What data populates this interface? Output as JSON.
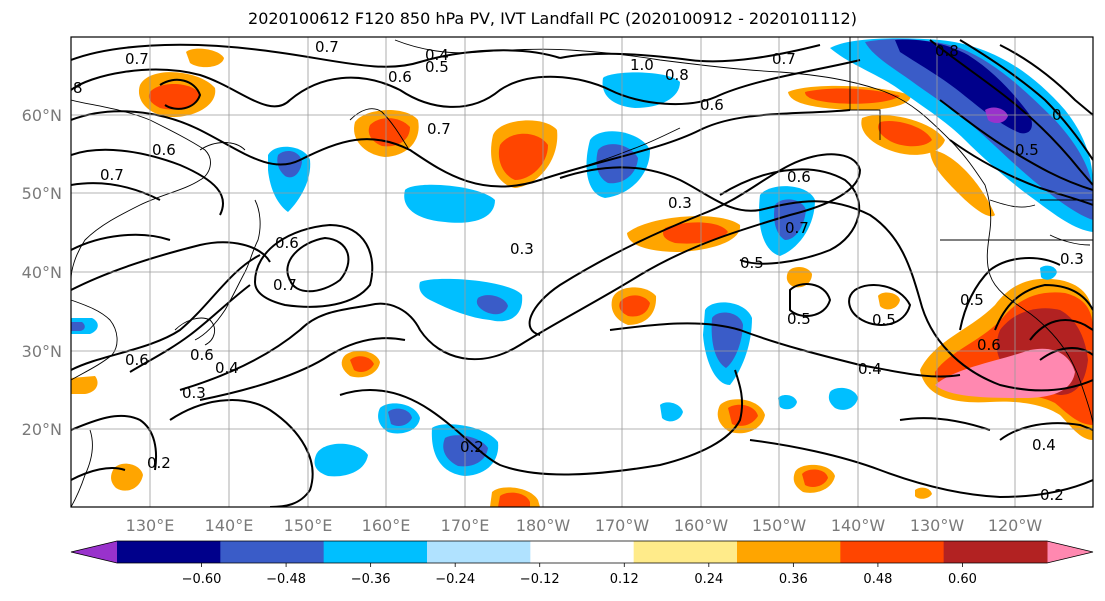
{
  "title": "2020100612 F120 850 hPa PV, IVT Landfall PC (2020100912 - 2020101112)",
  "map": {
    "lat_ticks": [
      "60°N",
      "50°N",
      "40°N",
      "30°N",
      "20°N"
    ],
    "lon_ticks": [
      "130°E",
      "140°E",
      "150°E",
      "160°E",
      "170°E",
      "180°W",
      "170°W",
      "160°W",
      "150°W",
      "140°W",
      "130°W",
      "120°W"
    ],
    "contour_labels": [
      {
        "text": "0.7"
      },
      {
        "text": "0.7"
      },
      {
        "text": "0.4"
      },
      {
        "text": "0.5"
      },
      {
        "text": "1.0"
      },
      {
        "text": "0.8"
      },
      {
        "text": "0.7"
      },
      {
        "text": "0.8"
      },
      {
        "text": "8"
      },
      {
        "text": "0.6"
      },
      {
        "text": "0.7"
      },
      {
        "text": "0.6"
      },
      {
        "text": "0.6"
      },
      {
        "text": "0.7"
      },
      {
        "text": "0.3"
      },
      {
        "text": "0.6"
      },
      {
        "text": "0.7"
      },
      {
        "text": "0.6"
      },
      {
        "text": "0.7"
      },
      {
        "text": "0.3"
      },
      {
        "text": "0.5"
      },
      {
        "text": "0.3"
      },
      {
        "text": "0.5"
      },
      {
        "text": "0.5"
      },
      {
        "text": "0.5"
      },
      {
        "text": "0.6"
      },
      {
        "text": "0.6"
      },
      {
        "text": "0.6"
      },
      {
        "text": "0.4"
      },
      {
        "text": "0.3"
      },
      {
        "text": "0.4"
      },
      {
        "text": "0.2"
      },
      {
        "text": "0.2"
      },
      {
        "text": "0.4"
      },
      {
        "text": "0.2"
      },
      {
        "text": "0"
      },
      {
        "text": "0.5"
      }
    ]
  },
  "colorbar": {
    "colors": [
      "#9932cc",
      "#00008b",
      "#3a5cc8",
      "#00bfff",
      "#b0e2ff",
      "#ffffff",
      "#ffeb8a",
      "#ffa500",
      "#ff4500",
      "#b22222",
      "#ff88b0"
    ],
    "tick_labels": [
      "−0.60",
      "−0.48",
      "−0.36",
      "−0.24",
      "−0.12",
      "0.12",
      "0.24",
      "0.36",
      "0.48",
      "0.60"
    ]
  }
}
